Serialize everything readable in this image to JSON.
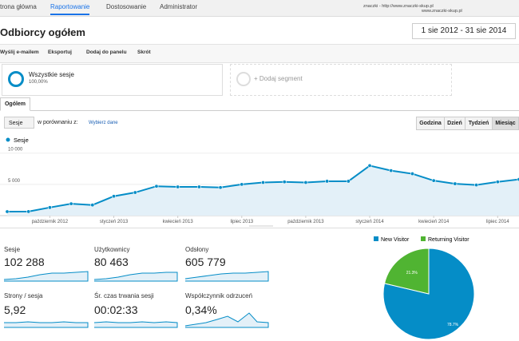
{
  "nav": {
    "items": [
      "trona główna",
      "Raportowanie",
      "Dostosowanie",
      "Administrator"
    ],
    "account": "znaczki - http://www.znaczki-skup.pl",
    "site": "www.znaczki-skup.pl"
  },
  "header": {
    "title": "Odbiorcy ogółem",
    "date_range": "1 sie 2012 - 31 sie 2014"
  },
  "toolbar": [
    "Wyślij e-mailem",
    "Eksportuj",
    "Dodaj do panelu",
    "Skrót"
  ],
  "segments": [
    {
      "name": "Wszystkie sesje",
      "share": "100,00%"
    },
    {
      "name": "+ Dodaj segment"
    }
  ],
  "tab": "Ogólem",
  "controls": {
    "metric": "Sesje",
    "compare": "w porównaniu z:",
    "choose": "Wybierz dane",
    "periods": [
      "Godzina",
      "Dzień",
      "Tydzień",
      "Miesiąc"
    ]
  },
  "chart_data": [
    {
      "type": "line",
      "categories": [
        null,
        null,
        "październik 2012",
        null,
        null,
        "styczeń 2013",
        null,
        null,
        "kwiecień 2013",
        null,
        null,
        "lipiec 2013",
        null,
        null,
        "październik 2013",
        null,
        null,
        "styczeń 2014",
        null,
        null,
        "kwiecień 2014",
        null,
        null,
        "lipiec 2014",
        null
      ],
      "series": [
        {
          "name": "Sesje",
          "color": "#058dc7",
          "values": [
            640,
            650,
            1300,
            1900,
            1700,
            3100,
            3700,
            4700,
            4600,
            4600,
            4500,
            5000,
            5300,
            5400,
            5300,
            5500,
            5500,
            8000,
            7200,
            6700,
            5600,
            5100,
            4900,
            5400,
            5800
          ]
        }
      ],
      "ylim": [
        0,
        11500
      ],
      "yticks": [
        {
          "value": 5000,
          "label": "5 000"
        },
        {
          "value": 10000,
          "label": "10 000"
        }
      ],
      "grid": true
    },
    {
      "type": "pie",
      "categories": [
        "New Visitor",
        "Returning Visitor"
      ],
      "values": [
        78.7,
        21.3
      ],
      "value_labels": [
        "78.7%",
        "21.3%"
      ],
      "colors": [
        "#058dc7",
        "#50b432"
      ]
    }
  ],
  "metrics": [
    {
      "label": "Sesje",
      "value": "102 288"
    },
    {
      "label": "Użytkownicy",
      "value": "80 463"
    },
    {
      "label": "Odsłony",
      "value": "605 779"
    },
    {
      "label": "Strony / sesja",
      "value": "5,92"
    },
    {
      "label": "Śr. czas trwania sesji",
      "value": "00:02:33"
    },
    {
      "label": "Współczynnik odrzuceń",
      "value": "0,34%"
    }
  ]
}
